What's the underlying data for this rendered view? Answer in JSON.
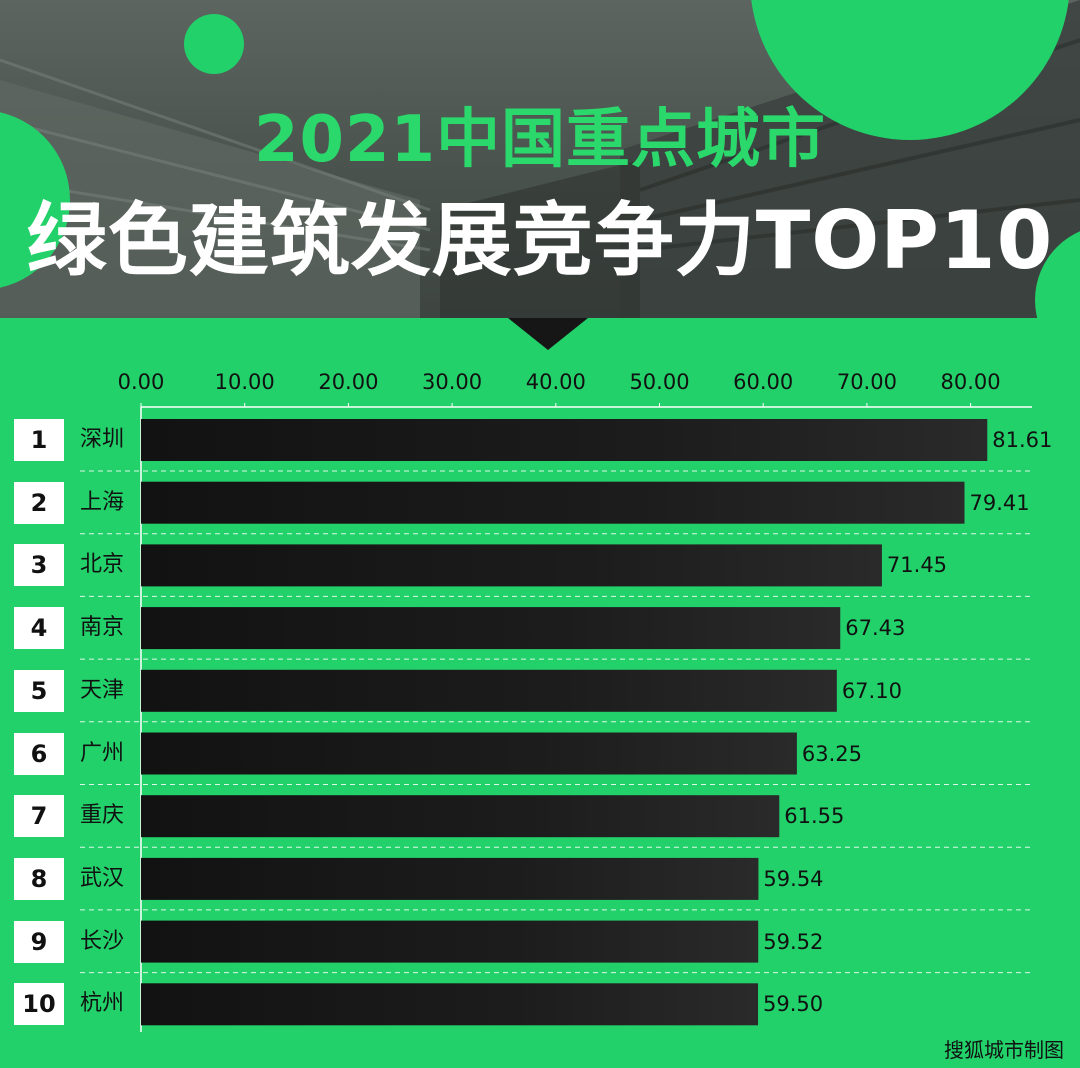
{
  "header": {
    "title_line1": "2021中国重点城市",
    "title_line2": "绿色建筑发展竞争力TOP10"
  },
  "colors": {
    "background": "#22d16a",
    "bar": "#161616",
    "title_accent": "#2bd86b",
    "circle_accent": "#22d16a"
  },
  "source": "搜狐城市制图",
  "chart_data": {
    "type": "bar",
    "orientation": "horizontal",
    "title": "2021中国重点城市绿色建筑发展竞争力TOP10",
    "xlabel": "",
    "ylabel": "",
    "xlim": [
      0,
      85
    ],
    "ticks": [
      "0.00",
      "10.00",
      "20.00",
      "30.00",
      "40.00",
      "50.00",
      "60.00",
      "70.00",
      "80.00"
    ],
    "tick_values": [
      0,
      10,
      20,
      30,
      40,
      50,
      60,
      70,
      80
    ],
    "grid": false,
    "ranks": [
      "1",
      "2",
      "3",
      "4",
      "5",
      "6",
      "7",
      "8",
      "9",
      "10"
    ],
    "categories": [
      "深圳",
      "上海",
      "北京",
      "南京",
      "天津",
      "广州",
      "重庆",
      "武汉",
      "长沙",
      "杭州"
    ],
    "values": [
      81.61,
      79.41,
      71.45,
      67.43,
      67.1,
      63.25,
      61.55,
      59.54,
      59.52,
      59.5
    ],
    "value_labels": [
      "81.61",
      "79.41",
      "71.45",
      "67.43",
      "67.10",
      "63.25",
      "61.55",
      "59.54",
      "59.52",
      "59.50"
    ]
  }
}
